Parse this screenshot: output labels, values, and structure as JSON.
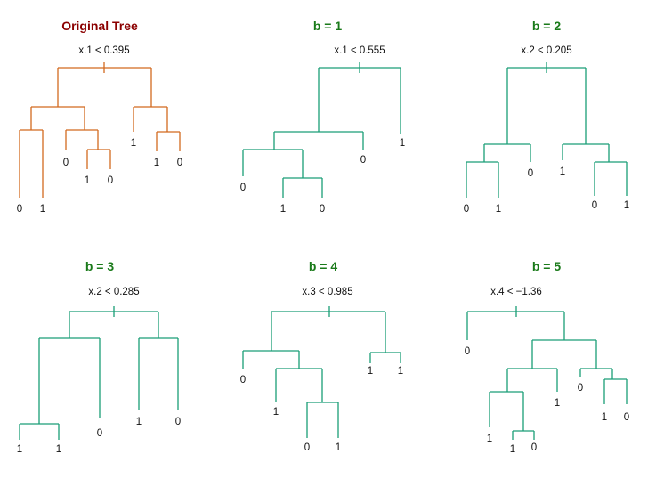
{
  "colors": {
    "original": "#d2691e",
    "bootstrap": "#1a9e77",
    "title_original": "#8b0000",
    "title_boot": "#1a7a1a",
    "text": "#111111"
  },
  "panels": [
    {
      "title": "Original Tree",
      "split": "x.1 < 0.395",
      "kind": "original",
      "leaves": [
        "0",
        "1",
        "0",
        "1",
        "0",
        "1",
        "1",
        "0"
      ]
    },
    {
      "title": "b = 1",
      "split": "x.1 < 0.555",
      "kind": "bootstrap",
      "leaves": [
        "0",
        "1",
        "0",
        "0",
        "1"
      ]
    },
    {
      "title": "b = 2",
      "split": "x.2 < 0.205",
      "kind": "bootstrap",
      "leaves": [
        "0",
        "1",
        "0",
        "1",
        "0",
        "1"
      ]
    },
    {
      "title": "b = 3",
      "split": "x.2 < 0.285",
      "kind": "bootstrap",
      "leaves": [
        "1",
        "1",
        "0",
        "1",
        "0"
      ]
    },
    {
      "title": "b = 4",
      "split": "x.3 < 0.985",
      "kind": "bootstrap",
      "leaves": [
        "0",
        "1",
        "0",
        "1",
        "1",
        "1"
      ]
    },
    {
      "title": "b = 5",
      "split": "x.4 < −1.36",
      "kind": "bootstrap",
      "leaves": [
        "0",
        "1",
        "1",
        "0",
        "1",
        "0",
        "1",
        "0"
      ]
    }
  ]
}
